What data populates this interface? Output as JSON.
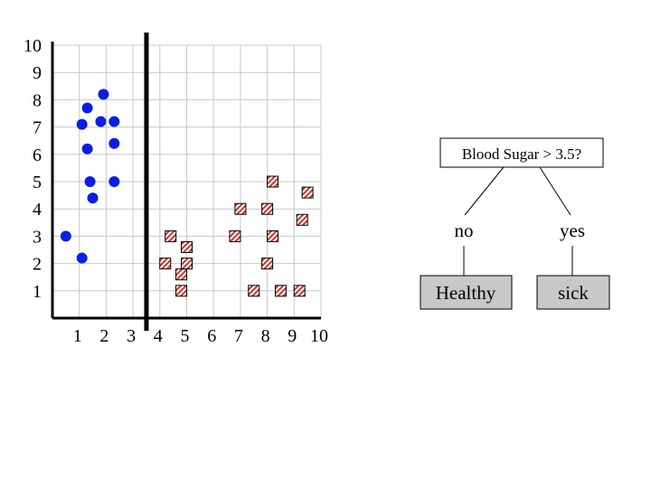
{
  "chart_data": {
    "type": "scatter",
    "xlim": [
      0,
      10
    ],
    "ylim": [
      0,
      10
    ],
    "x_ticks": [
      1,
      2,
      3,
      4,
      5,
      6,
      7,
      8,
      9,
      10
    ],
    "y_ticks": [
      1,
      2,
      3,
      4,
      5,
      6,
      7,
      8,
      9,
      10
    ],
    "grid": true,
    "split_line_x": 3.5,
    "series": [
      {
        "marker": "circle",
        "color": "#0a1ee6",
        "points": [
          [
            0.5,
            3.0
          ],
          [
            1.1,
            2.2
          ],
          [
            1.3,
            7.7
          ],
          [
            1.9,
            8.2
          ],
          [
            1.1,
            7.1
          ],
          [
            1.8,
            7.2
          ],
          [
            2.3,
            7.2
          ],
          [
            1.3,
            6.2
          ],
          [
            2.3,
            6.4
          ],
          [
            1.4,
            5.0
          ],
          [
            2.3,
            5.0
          ],
          [
            1.5,
            4.4
          ]
        ]
      },
      {
        "marker": "square-hatched",
        "color": "#c0392b",
        "points": [
          [
            4.2,
            2.0
          ],
          [
            4.4,
            3.0
          ],
          [
            5.0,
            2.6
          ],
          [
            5.0,
            2.0
          ],
          [
            4.8,
            1.6
          ],
          [
            4.8,
            1.0
          ],
          [
            6.8,
            3.0
          ],
          [
            7.0,
            4.0
          ],
          [
            7.5,
            1.0
          ],
          [
            8.0,
            4.0
          ],
          [
            8.2,
            5.0
          ],
          [
            8.2,
            3.0
          ],
          [
            8.0,
            2.0
          ],
          [
            8.5,
            1.0
          ],
          [
            9.2,
            1.0
          ],
          [
            9.3,
            3.6
          ],
          [
            9.5,
            4.6
          ]
        ]
      }
    ]
  },
  "tree": {
    "root_label": "Blood Sugar > 3.5?",
    "left_branch": "no",
    "right_branch": "yes",
    "left_leaf": "Healthy",
    "right_leaf": "sick"
  },
  "colors": {
    "grid": "#c8c8c8",
    "leaf_fill": "#c8c8c8"
  }
}
